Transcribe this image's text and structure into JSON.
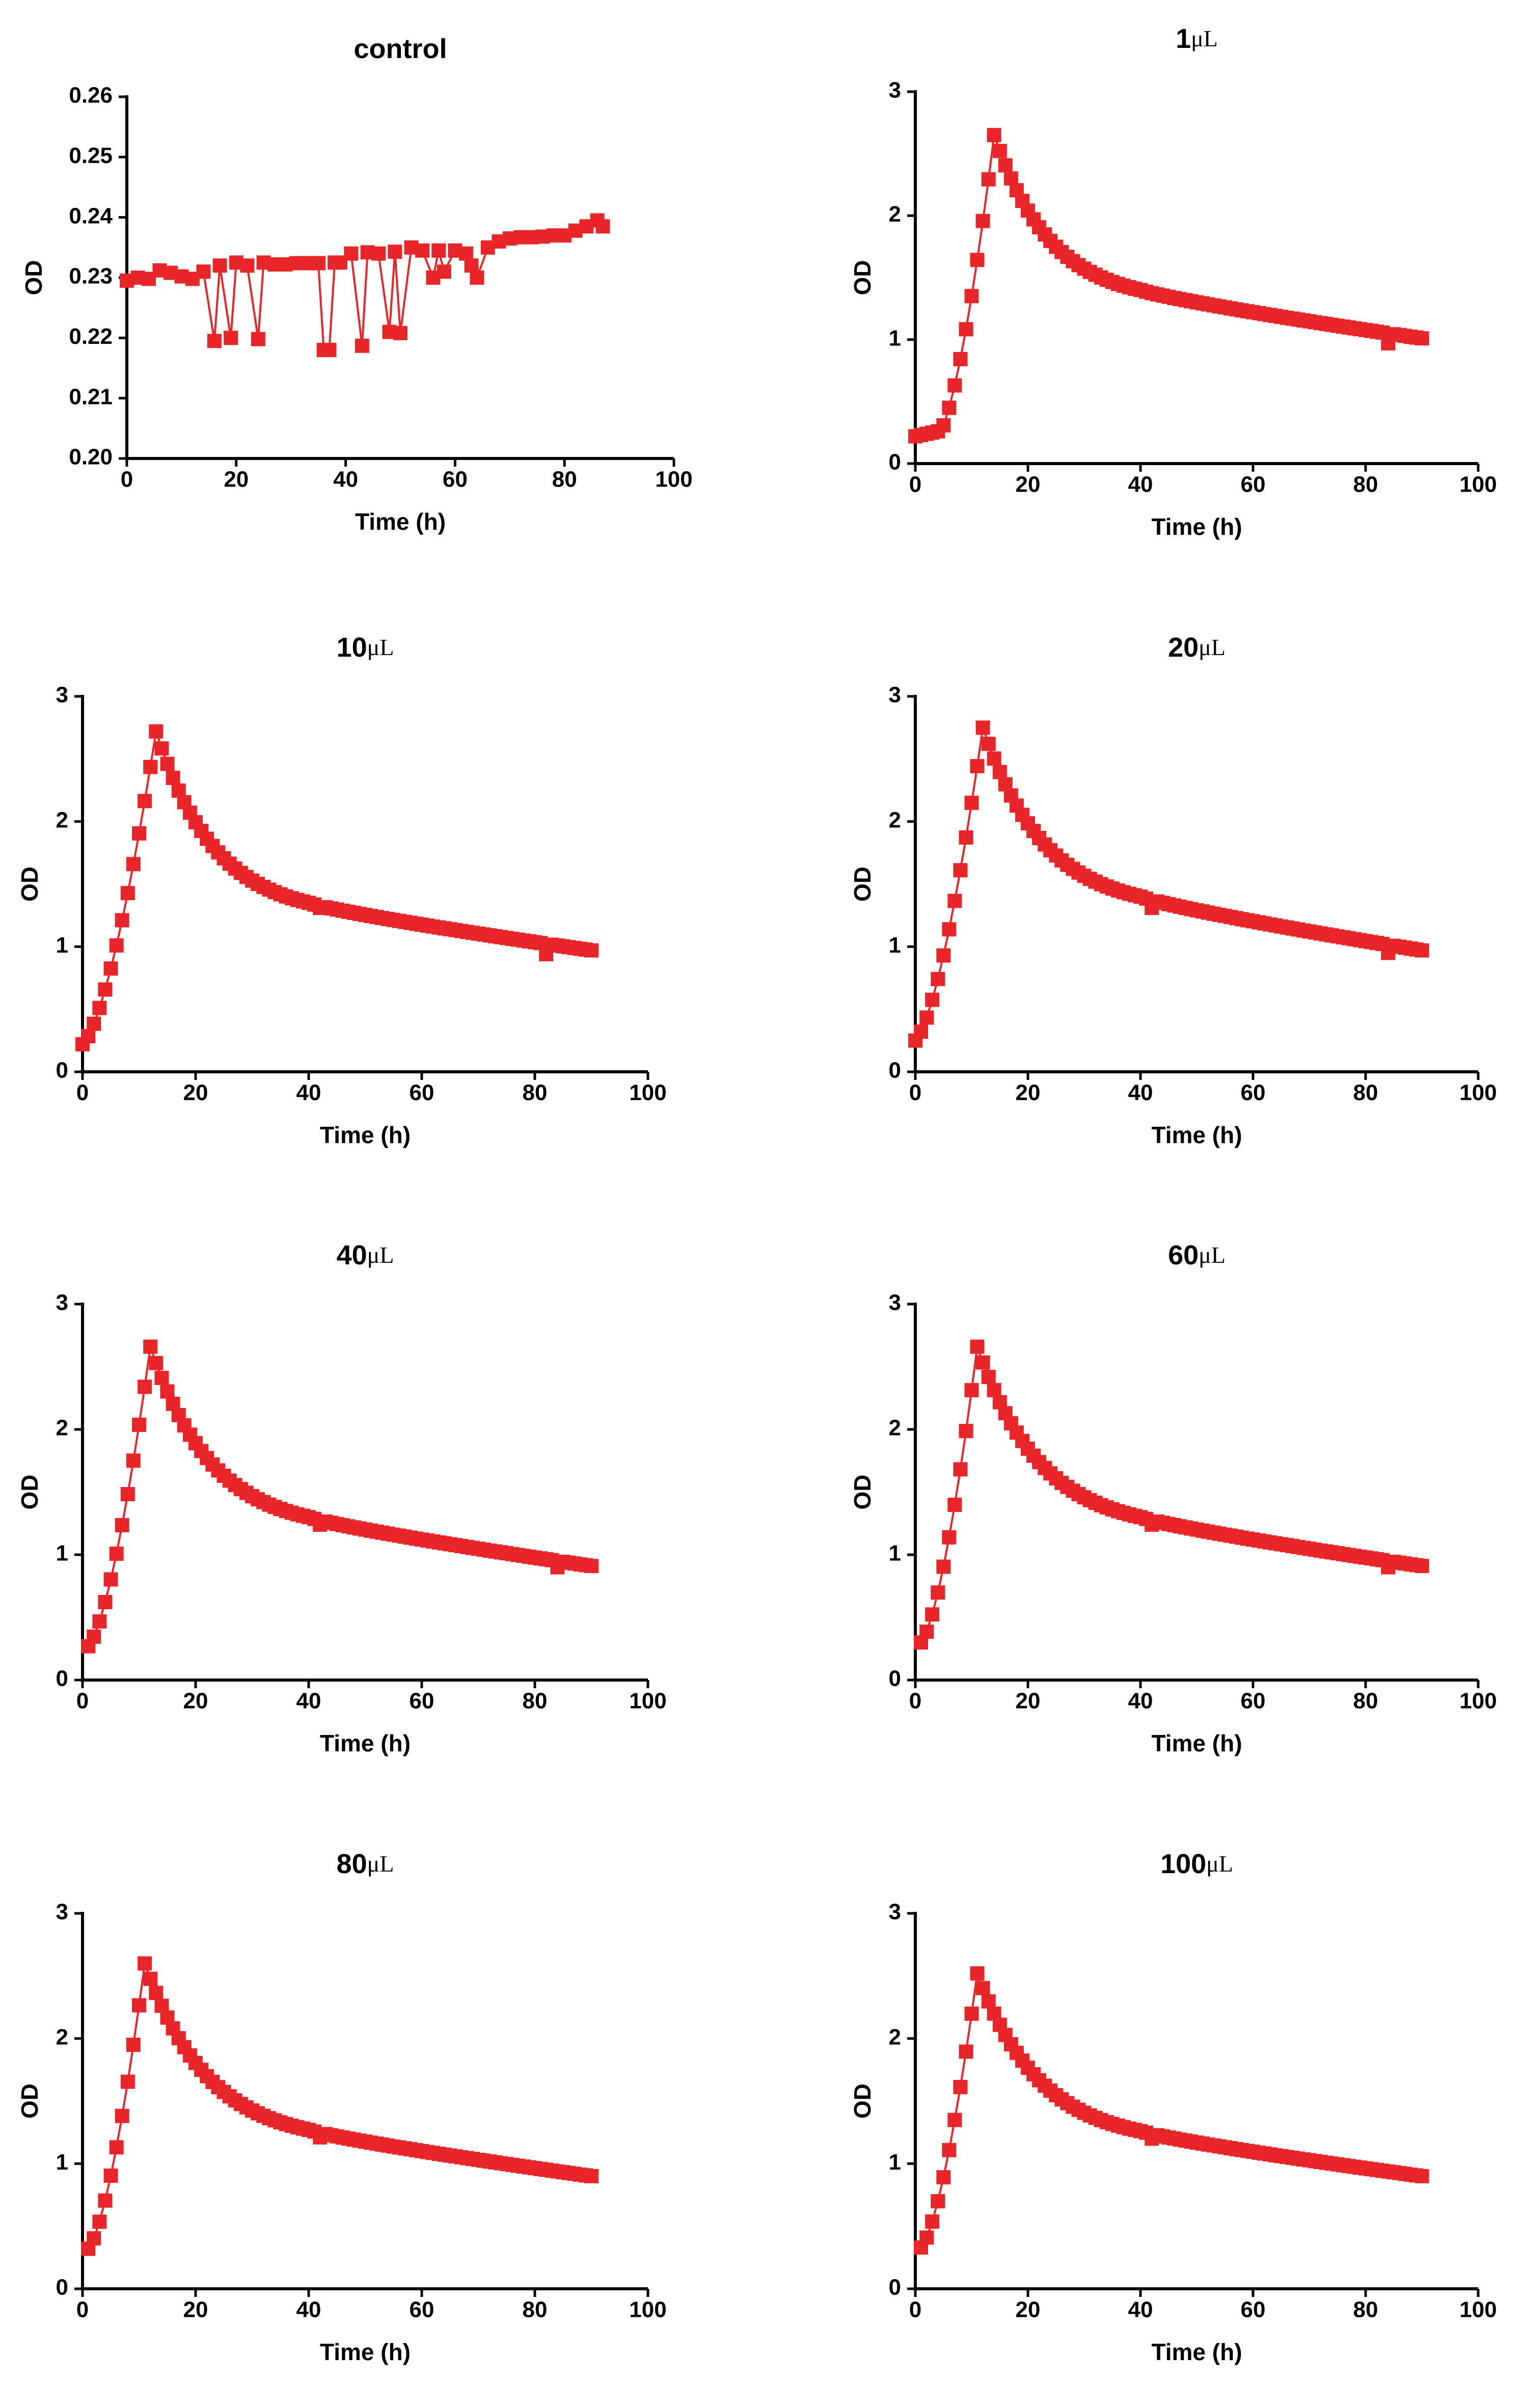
{
  "figure": {
    "series_color": "#e8262a"
  },
  "chart_data": [
    {
      "type": "line",
      "title": "control",
      "title_unit": "",
      "xlabel": "Time (h)",
      "ylabel": "OD",
      "xlim": [
        0,
        100
      ],
      "ylim": [
        0.2,
        0.26
      ],
      "xticks": [
        0,
        20,
        40,
        60,
        80,
        100
      ],
      "xtick_labels": [
        "0",
        "20",
        "40",
        "60",
        "80",
        "100"
      ],
      "yticks": [
        0.2,
        0.21,
        0.22,
        0.23,
        0.24,
        0.25,
        0.26
      ],
      "ytick_labels": [
        "0.20",
        "0.21",
        "0.22",
        "0.23",
        "0.24",
        "0.25",
        "0.26"
      ],
      "series": [
        {
          "name": "control",
          "marker": "square",
          "x": [
            0,
            2,
            4,
            6,
            8,
            10,
            12,
            14,
            16,
            17,
            19,
            20,
            22,
            24,
            25,
            27,
            29,
            31,
            33,
            35,
            36,
            37,
            38,
            39,
            41,
            43,
            44,
            46,
            48,
            49,
            50,
            52,
            54,
            56,
            57,
            58,
            60,
            62,
            63,
            64,
            66,
            68,
            70,
            72,
            74,
            76,
            78,
            80,
            82,
            84,
            86,
            87
          ],
          "y": [
            0.2295,
            0.23,
            0.2298,
            0.2312,
            0.2308,
            0.2302,
            0.2298,
            0.231,
            0.2195,
            0.232,
            0.22,
            0.2325,
            0.232,
            0.2198,
            0.2325,
            0.2322,
            0.2322,
            0.2324,
            0.2324,
            0.2324,
            0.218,
            0.218,
            0.2325,
            0.2325,
            0.234,
            0.2187,
            0.2342,
            0.234,
            0.221,
            0.2343,
            0.2208,
            0.235,
            0.2345,
            0.23,
            0.2345,
            0.231,
            0.2345,
            0.234,
            0.232,
            0.23,
            0.235,
            0.236,
            0.2365,
            0.2367,
            0.2367,
            0.2368,
            0.237,
            0.237,
            0.2378,
            0.2385,
            0.2395,
            0.2385
          ]
        }
      ]
    },
    {
      "type": "line",
      "title": "1",
      "title_unit": "μL",
      "xlabel": "Time (h)",
      "ylabel": "OD",
      "xlim": [
        0,
        100
      ],
      "ylim": [
        0,
        3
      ],
      "xticks": [
        0,
        20,
        40,
        60,
        80,
        100
      ],
      "xtick_labels": [
        "0",
        "20",
        "40",
        "60",
        "80",
        "100"
      ],
      "yticks": [
        0,
        1,
        2,
        3
      ],
      "ytick_labels": [
        "0",
        "1",
        "2",
        "3"
      ],
      "series": [
        {
          "name": "1μL",
          "marker": "square",
          "curve": {
            "x_start": 0,
            "y0": 0.22,
            "t_peak": 14,
            "peak": 2.65,
            "lag": 4,
            "y40": 1.4,
            "y90": 1.01,
            "x_end": 90,
            "step": 1
          },
          "drops": [
            [
              84,
              0.97
            ]
          ]
        }
      ]
    },
    {
      "type": "line",
      "title": "10",
      "title_unit": "μL",
      "xlabel": "Time (h)",
      "ylabel": "OD",
      "xlim": [
        0,
        100
      ],
      "ylim": [
        0,
        3
      ],
      "xticks": [
        0,
        20,
        40,
        60,
        80,
        100
      ],
      "xtick_labels": [
        "0",
        "20",
        "40",
        "60",
        "80",
        "100"
      ],
      "yticks": [
        0,
        1,
        2,
        3
      ],
      "ytick_labels": [
        "0",
        "1",
        "2",
        "3"
      ],
      "series": [
        {
          "name": "10μL",
          "marker": "square",
          "curve": {
            "x_start": 0,
            "y0": 0.22,
            "t_peak": 13,
            "peak": 2.72,
            "lag": 0,
            "y40": 1.35,
            "y90": 0.97,
            "x_end": 90,
            "step": 1
          },
          "drops": [
            [
              42,
              1.31
            ],
            [
              82,
              0.94
            ]
          ]
        }
      ]
    },
    {
      "type": "line",
      "title": "20",
      "title_unit": "μL",
      "xlabel": "Time (h)",
      "ylabel": "OD",
      "xlim": [
        0,
        100
      ],
      "ylim": [
        0,
        3
      ],
      "xticks": [
        0,
        20,
        40,
        60,
        80,
        100
      ],
      "xtick_labels": [
        "0",
        "20",
        "40",
        "60",
        "80",
        "100"
      ],
      "yticks": [
        0,
        1,
        2,
        3
      ],
      "ytick_labels": [
        "0",
        "1",
        "2",
        "3"
      ],
      "series": [
        {
          "name": "20μL",
          "marker": "square",
          "curve": {
            "x_start": 0,
            "y0": 0.25,
            "t_peak": 12,
            "peak": 2.75,
            "lag": 0,
            "y40": 1.4,
            "y90": 0.97,
            "x_end": 90,
            "step": 1
          },
          "drops": [
            [
              42,
              1.31
            ],
            [
              84,
              0.95
            ]
          ]
        }
      ]
    },
    {
      "type": "line",
      "title": "40",
      "title_unit": "μL",
      "xlabel": "Time (h)",
      "ylabel": "OD",
      "xlim": [
        0,
        100
      ],
      "ylim": [
        0,
        3
      ],
      "xticks": [
        0,
        20,
        40,
        60,
        80,
        100
      ],
      "xtick_labels": [
        "0",
        "20",
        "40",
        "60",
        "80",
        "100"
      ],
      "yticks": [
        0,
        1,
        2,
        3
      ],
      "ytick_labels": [
        "0",
        "1",
        "2",
        "3"
      ],
      "series": [
        {
          "name": "40μL",
          "marker": "square",
          "curve": {
            "x_start": 1,
            "y0": 0.27,
            "t_peak": 12,
            "peak": 2.66,
            "lag": 1,
            "y40": 1.3,
            "y90": 0.91,
            "x_end": 90,
            "step": 1
          },
          "drops": [
            [
              42,
              1.24
            ],
            [
              84,
              0.9
            ]
          ]
        }
      ]
    },
    {
      "type": "line",
      "title": "60",
      "title_unit": "μL",
      "xlabel": "Time (h)",
      "ylabel": "OD",
      "xlim": [
        0,
        100
      ],
      "ylim": [
        0,
        3
      ],
      "xticks": [
        0,
        20,
        40,
        60,
        80,
        100
      ],
      "xtick_labels": [
        "0",
        "20",
        "40",
        "60",
        "80",
        "100"
      ],
      "yticks": [
        0,
        1,
        2,
        3
      ],
      "ytick_labels": [
        "0",
        "1",
        "2",
        "3"
      ],
      "series": [
        {
          "name": "60μL",
          "marker": "square",
          "curve": {
            "x_start": 1,
            "y0": 0.3,
            "t_peak": 11,
            "peak": 2.66,
            "lag": 1,
            "y40": 1.3,
            "y90": 0.91,
            "x_end": 90,
            "step": 1
          },
          "drops": [
            [
              42,
              1.24
            ],
            [
              84,
              0.9
            ]
          ]
        }
      ]
    },
    {
      "type": "line",
      "title": "80",
      "title_unit": "μL",
      "xlabel": "Time (h)",
      "ylabel": "OD",
      "xlim": [
        0,
        100
      ],
      "ylim": [
        0,
        3
      ],
      "xticks": [
        0,
        20,
        40,
        60,
        80,
        100
      ],
      "xtick_labels": [
        "0",
        "20",
        "40",
        "60",
        "80",
        "100"
      ],
      "yticks": [
        0,
        1,
        2,
        3
      ],
      "ytick_labels": [
        "0",
        "1",
        "2",
        "3"
      ],
      "series": [
        {
          "name": "80μL",
          "marker": "square",
          "curve": {
            "x_start": 1,
            "y0": 0.32,
            "t_peak": 11,
            "peak": 2.6,
            "lag": 1,
            "y40": 1.27,
            "y90": 0.9,
            "x_end": 90,
            "step": 1
          },
          "drops": [
            [
              42,
              1.21
            ]
          ]
        }
      ]
    },
    {
      "type": "line",
      "title": "100",
      "title_unit": "μL",
      "xlabel": "Time (h)",
      "ylabel": "OD",
      "xlim": [
        0,
        100
      ],
      "ylim": [
        0,
        3
      ],
      "xticks": [
        0,
        20,
        40,
        60,
        80,
        100
      ],
      "xtick_labels": [
        "0",
        "20",
        "40",
        "60",
        "80",
        "100"
      ],
      "yticks": [
        0,
        1,
        2,
        3
      ],
      "ytick_labels": [
        "0",
        "1",
        "2",
        "3"
      ],
      "series": [
        {
          "name": "100μL",
          "marker": "square",
          "curve": {
            "x_start": 1,
            "y0": 0.33,
            "t_peak": 11,
            "peak": 2.52,
            "lag": 1,
            "y40": 1.26,
            "y90": 0.9,
            "x_end": 90,
            "step": 1
          },
          "drops": [
            [
              42,
              1.2
            ]
          ]
        }
      ]
    }
  ]
}
